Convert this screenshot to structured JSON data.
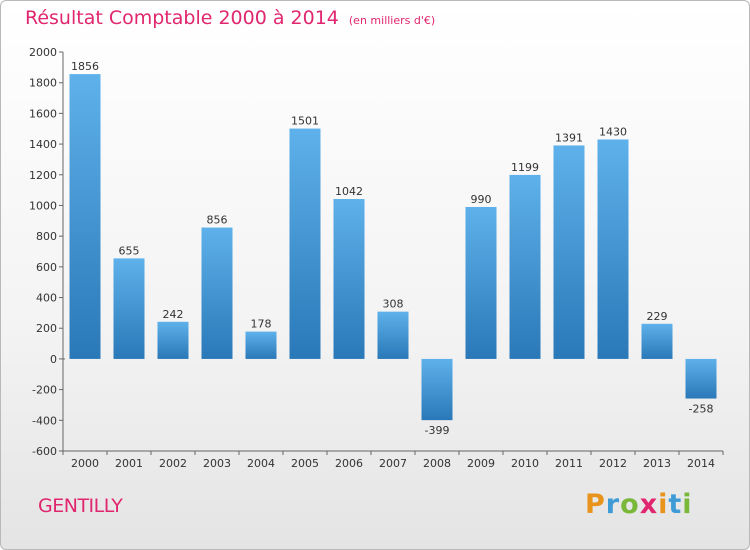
{
  "header": {
    "title": "Résultat Comptable 2000 à 2014",
    "unit": "(en milliers d'€)"
  },
  "footer": {
    "commune": "GENTILLY",
    "logo_letters": [
      "P",
      "r",
      "o",
      "x",
      "i",
      "t",
      "i"
    ],
    "logo_colors": [
      "#e8931c",
      "#3e9bd6",
      "#7ab83a",
      "#e0266e",
      "#e8931c",
      "#3e9bd6",
      "#7ab83a"
    ]
  },
  "colors": {
    "accent": "#e0266e",
    "bar_top": "#5eb1ea",
    "bar_bottom": "#2a78b8"
  },
  "chart_data": {
    "type": "bar",
    "categories": [
      "2000",
      "2001",
      "2002",
      "2003",
      "2004",
      "2005",
      "2006",
      "2007",
      "2008",
      "2009",
      "2010",
      "2011",
      "2012",
      "2013",
      "2014"
    ],
    "values": [
      1856,
      655,
      242,
      856,
      178,
      1501,
      1042,
      308,
      -399,
      990,
      1199,
      1391,
      1430,
      229,
      -258
    ],
    "title": "Résultat Comptable 2000 à 2014",
    "xlabel": "",
    "ylabel": "",
    "ylim": [
      -600,
      2000
    ],
    "yticks": [
      -600,
      -400,
      -200,
      0,
      200,
      400,
      600,
      800,
      1000,
      1200,
      1400,
      1600,
      1800,
      2000
    ],
    "grid": false,
    "legend": "none"
  }
}
